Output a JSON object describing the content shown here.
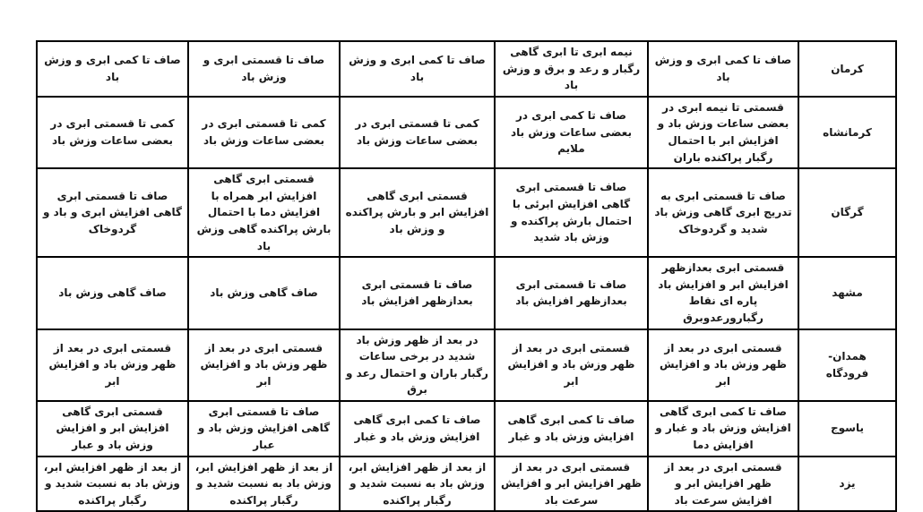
{
  "page": {
    "background_color": "#ffffff",
    "border_color": "#000000",
    "text_color": "#1a1a1a",
    "direction": "rtl"
  },
  "table": {
    "description_columns_order": "rtl",
    "rows": [
      {
        "city": "کرمان",
        "cells": [
          "صاف تا کمی ابری و وزش باد",
          "نیمه ابری تا ابری گاهی رگبار و رعد و برق و وزش باد",
          "صاف تا کمی ابری و وزش باد",
          "صاف تا قسمتی ابری و وزش باد",
          "صاف تا کمی ابری و وزش باد"
        ]
      },
      {
        "city": "کرمانشاه",
        "cells": [
          "قسمتی تا نیمه ابری در بعضی ساعات وزش باد و افزایش ابر با احتمال رگبار پراکنده باران",
          "صاف تا کمی ابری در بعضی ساعات وزش باد ملایم",
          "کمی تا قسمتی ابری در بعضی ساعات وزش باد",
          "کمی تا قسمتی ابری در بعضی ساعات وزش باد",
          "کمی تا قسمتی ابری در بعضی ساعات وزش باد"
        ]
      },
      {
        "city": "گرگان",
        "cells": [
          "صاف تا قسمتی ابری به تدریج ابری گاهی وزش باد شدید و گردوخاک",
          "صاف تا قسمتی ابری گاهی افزایش ابرئی با احتمال بارش پراکنده و وزش باد شدید",
          "قسمتی ابری گاهی افزایش ابر و بارش پراکنده و وزش باد",
          "قسمتی ابری گاهی افزایش ابر همراه با افزایش دما با احتمال بارش پراکنده گاهی وزش باد",
          "صاف تا قسمتی ابری گاهی افزایش ابری و باد و گردوخاک"
        ]
      },
      {
        "city": "مشهد",
        "cells": [
          "قسمتی ابری بعدازظهر افزایش ابر و افزایش باد پاره ای نقاط رگبارورعدوبرق",
          "صاف تا قسمتی ابری بعدازظهر افزایش باد",
          "صاف تا قسمتی ابری بعدازظهر افزایش باد",
          "صاف گاهی وزش باد",
          "صاف گاهی وزش باد"
        ]
      },
      {
        "city": "همدان-\nفرودگاه",
        "cells": [
          "قسمتی ابری در بعد از ظهر وزش باد و افزایش ابر",
          "قسمتی ابری در بعد از ظهر وزش باد و افزایش ابر",
          "در بعد از ظهر وزش باد شدید در برخی ساعات رگبار باران و احتمال رعد و برق",
          "قسمتی ابری در بعد از ظهر وزش باد و افزایش ابر",
          "قسمتی ابری در بعد از ظهر وزش باد و افزایش ابر"
        ]
      },
      {
        "city": "یاسوج",
        "cells": [
          "صاف تا کمی ابری گاهی افزایش وزش باد و غبار و افزایش دما",
          "صاف تا کمی ابری گاهی افزایش وزش باد و غبار",
          "صاف تا کمی ابری گاهی افزایش وزش باد و غبار",
          "صاف تا قسمتی ابری گاهی افزایش وزش باد و عبار",
          "قسمتی ابری گاهی افزایش ابر و افزایش وزش باد و عبار"
        ]
      },
      {
        "city": "یزد",
        "cells": [
          "قسمتی ابری در بعد از ظهر افزایش ابر و افزایش سرعت باد",
          "قسمتی ابری در بعد از ظهر افزایش ابر و افزایش سرعت باد",
          "از بعد از ظهر افزایش ابر، وزش باد به نسبت شدید و رگبار پراکنده",
          "از بعد از ظهر افزایش ابر، وزش باد به نسبت شدید و رگبار پراکنده",
          "از بعد از ظهر افزایش ابر، وزش باد به نسبت شدید و رگبار پراکنده"
        ]
      }
    ]
  }
}
